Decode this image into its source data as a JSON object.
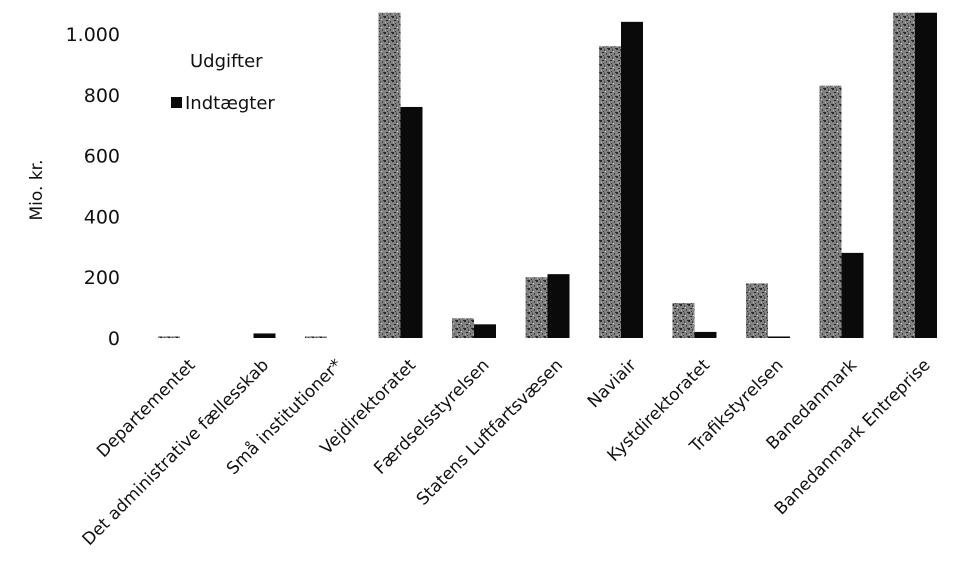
{
  "chart_data": {
    "type": "bar",
    "ylabel": "Mio. kr.",
    "ylim": [
      0,
      1070
    ],
    "yticks": [
      0,
      200,
      400,
      600,
      800,
      1000
    ],
    "ytick_labels": [
      "0",
      "200",
      "400",
      "600",
      "800",
      "1.000"
    ],
    "grid": false,
    "legend_position": "top-left",
    "categories": [
      "Departementet",
      "Det administrative fællesskab",
      "Små institutioner*",
      "Vejdirektoratet",
      "Færdselsstyrelsen",
      "Statens Luftfartsvæsen",
      "Naviair",
      "Kystdirektoratet",
      "Trafikstyrelsen",
      "Banedanmark",
      "Banedanmark Entreprise"
    ],
    "series": [
      {
        "name": "Udgifter",
        "color": "#555555",
        "pattern": "speckled",
        "values": [
          5,
          0,
          5,
          1070,
          65,
          200,
          960,
          115,
          180,
          830,
          1070
        ]
      },
      {
        "name": "Indtægter",
        "color": "#0a0a0a",
        "pattern": "solid",
        "values": [
          0,
          15,
          0,
          760,
          45,
          210,
          1040,
          20,
          5,
          280,
          1070
        ]
      }
    ]
  }
}
